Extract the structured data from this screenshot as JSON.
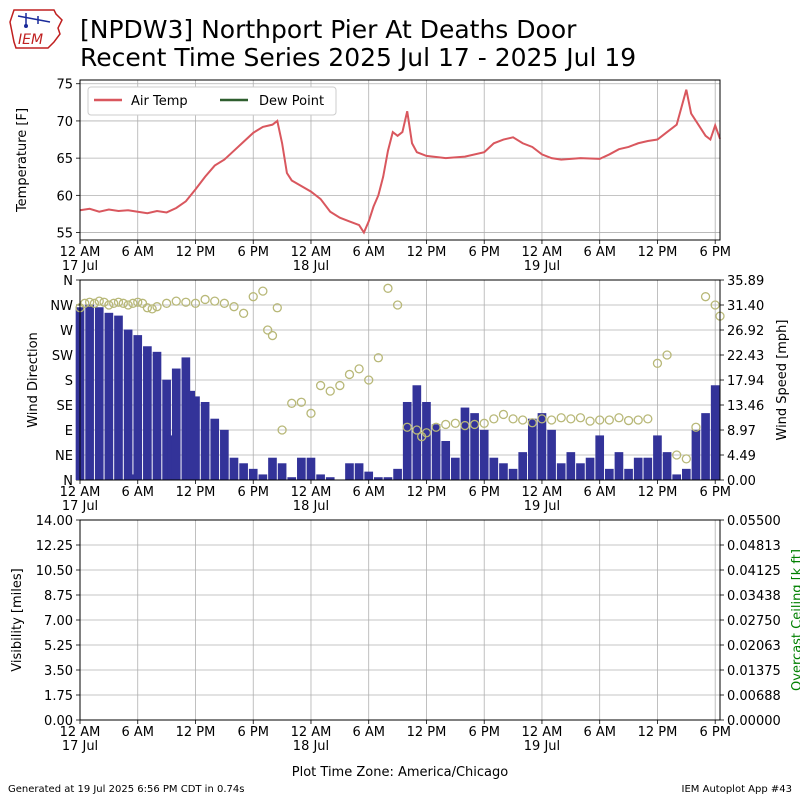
{
  "header": {
    "title_line1": "[NPDW3] Northport Pier At Deaths Door",
    "title_line2": "Recent Time Series 2025 Jul 17 - 2025 Jul 19",
    "logo_text": "IEM"
  },
  "footer": {
    "generated": "Generated at 19 Jul 2025 6:56 PM CDT in 0.74s",
    "app": "IEM Autoplot App #43"
  },
  "colors": {
    "air_temp": "#d9575e",
    "dew_point": "#2e5e2e",
    "wind_speed_bar": "#333399",
    "wind_direction_marker": "#b8b878",
    "ceiling_axis": "#008000",
    "grid": "#b0b0b0"
  },
  "chart_data": [
    {
      "type": "line",
      "ylabel": "Temperature [F]",
      "ylim": [
        54,
        75.5
      ],
      "yticks": [
        55,
        60,
        65,
        70,
        75
      ],
      "grid": true,
      "legend_position": "top-left",
      "x_unit": "hours since 17 Jul 12 AM",
      "xlim": [
        0,
        66.5
      ],
      "series": [
        {
          "name": "Air Temp",
          "points": [
            [
              0,
              58
            ],
            [
              1,
              58.2
            ],
            [
              2,
              57.8
            ],
            [
              3,
              58.1
            ],
            [
              4,
              57.9
            ],
            [
              5,
              58
            ],
            [
              6,
              57.8
            ],
            [
              7,
              57.6
            ],
            [
              8,
              57.9
            ],
            [
              9,
              57.7
            ],
            [
              10,
              58.3
            ],
            [
              11,
              59.2
            ],
            [
              12,
              60.8
            ],
            [
              13,
              62.5
            ],
            [
              14,
              64
            ],
            [
              15,
              64.8
            ],
            [
              16,
              66
            ],
            [
              17,
              67.2
            ],
            [
              18,
              68.4
            ],
            [
              19,
              69.2
            ],
            [
              20,
              69.5
            ],
            [
              20.5,
              70
            ],
            [
              21,
              67
            ],
            [
              21.5,
              63
            ],
            [
              22,
              62
            ],
            [
              24,
              60.5
            ],
            [
              25,
              59.5
            ],
            [
              26,
              57.8
            ],
            [
              27,
              57
            ],
            [
              28,
              56.5
            ],
            [
              29,
              56
            ],
            [
              29.5,
              55
            ],
            [
              30,
              56.5
            ],
            [
              30.5,
              58.5
            ],
            [
              31,
              60
            ],
            [
              31.5,
              62.5
            ],
            [
              32,
              66
            ],
            [
              32.5,
              68.5
            ],
            [
              33,
              68
            ],
            [
              33.5,
              68.5
            ],
            [
              34,
              71.3
            ],
            [
              34.5,
              67
            ],
            [
              35,
              65.8
            ],
            [
              36,
              65.3
            ],
            [
              38,
              65
            ],
            [
              40,
              65.2
            ],
            [
              42,
              65.8
            ],
            [
              43,
              67
            ],
            [
              44,
              67.5
            ],
            [
              45,
              67.8
            ],
            [
              46,
              67
            ],
            [
              47,
              66.5
            ],
            [
              48,
              65.5
            ],
            [
              49,
              65
            ],
            [
              50,
              64.8
            ],
            [
              52,
              65
            ],
            [
              54,
              64.9
            ],
            [
              55,
              65.5
            ],
            [
              56,
              66.2
            ],
            [
              57,
              66.5
            ],
            [
              58,
              67
            ],
            [
              59,
              67.3
            ],
            [
              60,
              67.5
            ],
            [
              61,
              68.5
            ],
            [
              62,
              69.5
            ],
            [
              63,
              74.2
            ],
            [
              63.5,
              71
            ],
            [
              64,
              70
            ],
            [
              65,
              68
            ],
            [
              65.5,
              67.5
            ],
            [
              66,
              69.4
            ],
            [
              66.5,
              67.6
            ]
          ]
        },
        {
          "name": "Dew Point",
          "points": []
        }
      ]
    },
    {
      "type": "bar",
      "ylabel": "Wind Direction",
      "ylabel_right": "Wind Speed [mph]",
      "ylim_direction": [
        0,
        360
      ],
      "direction_ticks": [
        "N",
        "NE",
        "E",
        "SE",
        "S",
        "SW",
        "W",
        "NW",
        "N"
      ],
      "ylim_speed": [
        0,
        35.89
      ],
      "speed_ticks": [
        "0.00",
        "4.49",
        "8.97",
        "13.46",
        "17.94",
        "22.43",
        "26.92",
        "31.40",
        "35.89"
      ],
      "grid": true,
      "x_unit": "hours since 17 Jul 12 AM",
      "xlim": [
        0,
        66.5
      ],
      "series": [
        {
          "name": "",
          "kind": "bar",
          "unit": "mph",
          "points": [
            [
              0,
              31
            ],
            [
              1,
              31.5
            ],
            [
              2,
              31
            ],
            [
              3,
              30
            ],
            [
              4,
              29.5
            ],
            [
              5,
              27
            ],
            [
              5.5,
              1
            ],
            [
              6,
              26
            ],
            [
              7,
              24
            ],
            [
              8,
              23
            ],
            [
              9,
              18
            ],
            [
              9.5,
              8
            ],
            [
              10,
              20
            ],
            [
              11,
              22
            ],
            [
              11.5,
              16
            ],
            [
              12,
              15
            ],
            [
              13,
              14
            ],
            [
              14,
              11
            ],
            [
              15,
              9
            ],
            [
              16,
              4
            ],
            [
              17,
              3
            ],
            [
              18,
              2
            ],
            [
              19,
              1
            ],
            [
              20,
              4
            ],
            [
              21,
              3
            ],
            [
              22,
              0.5
            ],
            [
              23,
              4
            ],
            [
              24,
              4
            ],
            [
              25,
              1
            ],
            [
              26,
              0.5
            ],
            [
              28,
              3
            ],
            [
              29,
              3
            ],
            [
              30,
              1.5
            ],
            [
              31,
              0.5
            ],
            [
              32,
              0.5
            ],
            [
              33,
              2
            ],
            [
              34,
              14
            ],
            [
              35,
              17
            ],
            [
              36,
              14
            ],
            [
              37,
              10
            ],
            [
              38,
              7
            ],
            [
              39,
              4
            ],
            [
              40,
              13
            ],
            [
              41,
              12
            ],
            [
              42,
              9
            ],
            [
              43,
              4
            ],
            [
              44,
              3
            ],
            [
              45,
              2
            ],
            [
              46,
              5
            ],
            [
              47,
              11
            ],
            [
              48,
              12
            ],
            [
              49,
              9
            ],
            [
              50,
              3
            ],
            [
              51,
              5
            ],
            [
              52,
              3
            ],
            [
              53,
              4
            ],
            [
              54,
              8
            ],
            [
              55,
              2
            ],
            [
              56,
              5
            ],
            [
              57,
              2
            ],
            [
              58,
              4
            ],
            [
              59,
              4
            ],
            [
              60,
              8
            ],
            [
              61,
              5
            ],
            [
              62,
              1
            ],
            [
              63,
              2
            ],
            [
              64,
              9
            ],
            [
              65,
              12
            ],
            [
              66,
              17
            ]
          ]
        },
        {
          "name": "",
          "kind": "scatter",
          "unit": "degrees",
          "points": [
            [
              0,
              310
            ],
            [
              0.5,
              318
            ],
            [
              1,
              320
            ],
            [
              1.5,
              318
            ],
            [
              2,
              322
            ],
            [
              2.5,
              320
            ],
            [
              3,
              315
            ],
            [
              3.5,
              318
            ],
            [
              4,
              320
            ],
            [
              4.5,
              318
            ],
            [
              5,
              315
            ],
            [
              5.5,
              318
            ],
            [
              6,
              320
            ],
            [
              6.5,
              318
            ],
            [
              7,
              310
            ],
            [
              7.5,
              308
            ],
            [
              8,
              312
            ],
            [
              9,
              318
            ],
            [
              10,
              322
            ],
            [
              11,
              320
            ],
            [
              12,
              318
            ],
            [
              13,
              325
            ],
            [
              14,
              322
            ],
            [
              15,
              318
            ],
            [
              16,
              312
            ],
            [
              17,
              300
            ],
            [
              18,
              330
            ],
            [
              19,
              340
            ],
            [
              19.5,
              270
            ],
            [
              20,
              260
            ],
            [
              20.5,
              310
            ],
            [
              21,
              90
            ],
            [
              22,
              138
            ],
            [
              23,
              140
            ],
            [
              24,
              120
            ],
            [
              25,
              170
            ],
            [
              26,
              160
            ],
            [
              27,
              170
            ],
            [
              28,
              190
            ],
            [
              29,
              200
            ],
            [
              30,
              180
            ],
            [
              31,
              220
            ],
            [
              32,
              345
            ],
            [
              33,
              315
            ],
            [
              34,
              95
            ],
            [
              35,
              90
            ],
            [
              35.5,
              78
            ],
            [
              36,
              85
            ],
            [
              37,
              95
            ],
            [
              38,
              100
            ],
            [
              39,
              102
            ],
            [
              40,
              98
            ],
            [
              41,
              100
            ],
            [
              42,
              102
            ],
            [
              43,
              110
            ],
            [
              44,
              118
            ],
            [
              45,
              110
            ],
            [
              46,
              108
            ],
            [
              47,
              103
            ],
            [
              48,
              110
            ],
            [
              49,
              108
            ],
            [
              50,
              112
            ],
            [
              51,
              110
            ],
            [
              52,
              112
            ],
            [
              53,
              106
            ],
            [
              54,
              108
            ],
            [
              55,
              108
            ],
            [
              56,
              112
            ],
            [
              57,
              107
            ],
            [
              58,
              108
            ],
            [
              59,
              110
            ],
            [
              60,
              210
            ],
            [
              61,
              225
            ],
            [
              62,
              45
            ],
            [
              63,
              38
            ],
            [
              64,
              95
            ],
            [
              65,
              330
            ],
            [
              66,
              315
            ],
            [
              66.5,
              295
            ]
          ]
        }
      ]
    },
    {
      "type": "line",
      "ylabel": "Visibility [miles]",
      "ylabel_right": "Overcast Ceiling [k ft]",
      "ylim": [
        0,
        14
      ],
      "yticks": [
        "0.00",
        "1.75",
        "3.50",
        "5.25",
        "7.00",
        "8.75",
        "10.50",
        "12.25",
        "14.00"
      ],
      "ylim_right": [
        0,
        0.055
      ],
      "yticks_right": [
        "0.00000",
        "0.00688",
        "0.01375",
        "0.02063",
        "0.02750",
        "0.03438",
        "0.04125",
        "0.04813",
        "0.05500"
      ],
      "grid": true,
      "series": []
    }
  ],
  "x_axis": {
    "tick_labels": [
      "12 AM",
      "6 AM",
      "12 PM",
      "6 PM",
      "12 AM",
      "6 AM",
      "12 PM",
      "6 PM",
      "12 AM",
      "6 AM",
      "12 PM",
      "6 PM"
    ],
    "tick_hours": [
      0,
      6,
      12,
      18,
      24,
      30,
      36,
      42,
      48,
      54,
      60,
      66
    ],
    "date_labels": [
      [
        "17 Jul",
        0
      ],
      [
        "18 Jul",
        24
      ],
      [
        "19 Jul",
        48
      ]
    ],
    "xlabel": "Plot Time Zone: America/Chicago"
  }
}
